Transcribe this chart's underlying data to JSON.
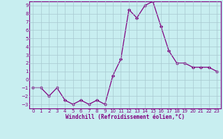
{
  "x": [
    0,
    1,
    2,
    3,
    4,
    5,
    6,
    7,
    8,
    9,
    10,
    11,
    12,
    13,
    14,
    15,
    16,
    17,
    18,
    19,
    20,
    21,
    22,
    23
  ],
  "y": [
    -1,
    -1,
    -2,
    -1,
    -2.5,
    -3,
    -2.5,
    -3,
    -2.5,
    -3,
    0.5,
    2.5,
    8.5,
    7.5,
    9,
    9.5,
    6.5,
    3.5,
    2,
    2,
    1.5,
    1.5,
    1.5,
    1
  ],
  "line_color": "#800080",
  "marker": "D",
  "markersize": 2.2,
  "linewidth": 0.9,
  "bg_color": "#c8eef0",
  "grid_color": "#a8c8d0",
  "xlabel": "Windchill (Refroidissement éolien,°C)",
  "ylim": [
    -3.5,
    9.5
  ],
  "xlim": [
    -0.5,
    23.5
  ],
  "yticks": [
    -3,
    -2,
    -1,
    0,
    1,
    2,
    3,
    4,
    5,
    6,
    7,
    8,
    9
  ],
  "xticks": [
    0,
    1,
    2,
    3,
    4,
    5,
    6,
    7,
    8,
    9,
    10,
    11,
    12,
    13,
    14,
    15,
    16,
    17,
    18,
    19,
    20,
    21,
    22,
    23
  ],
  "tick_fontsize": 5.0,
  "xlabel_fontsize": 5.5
}
